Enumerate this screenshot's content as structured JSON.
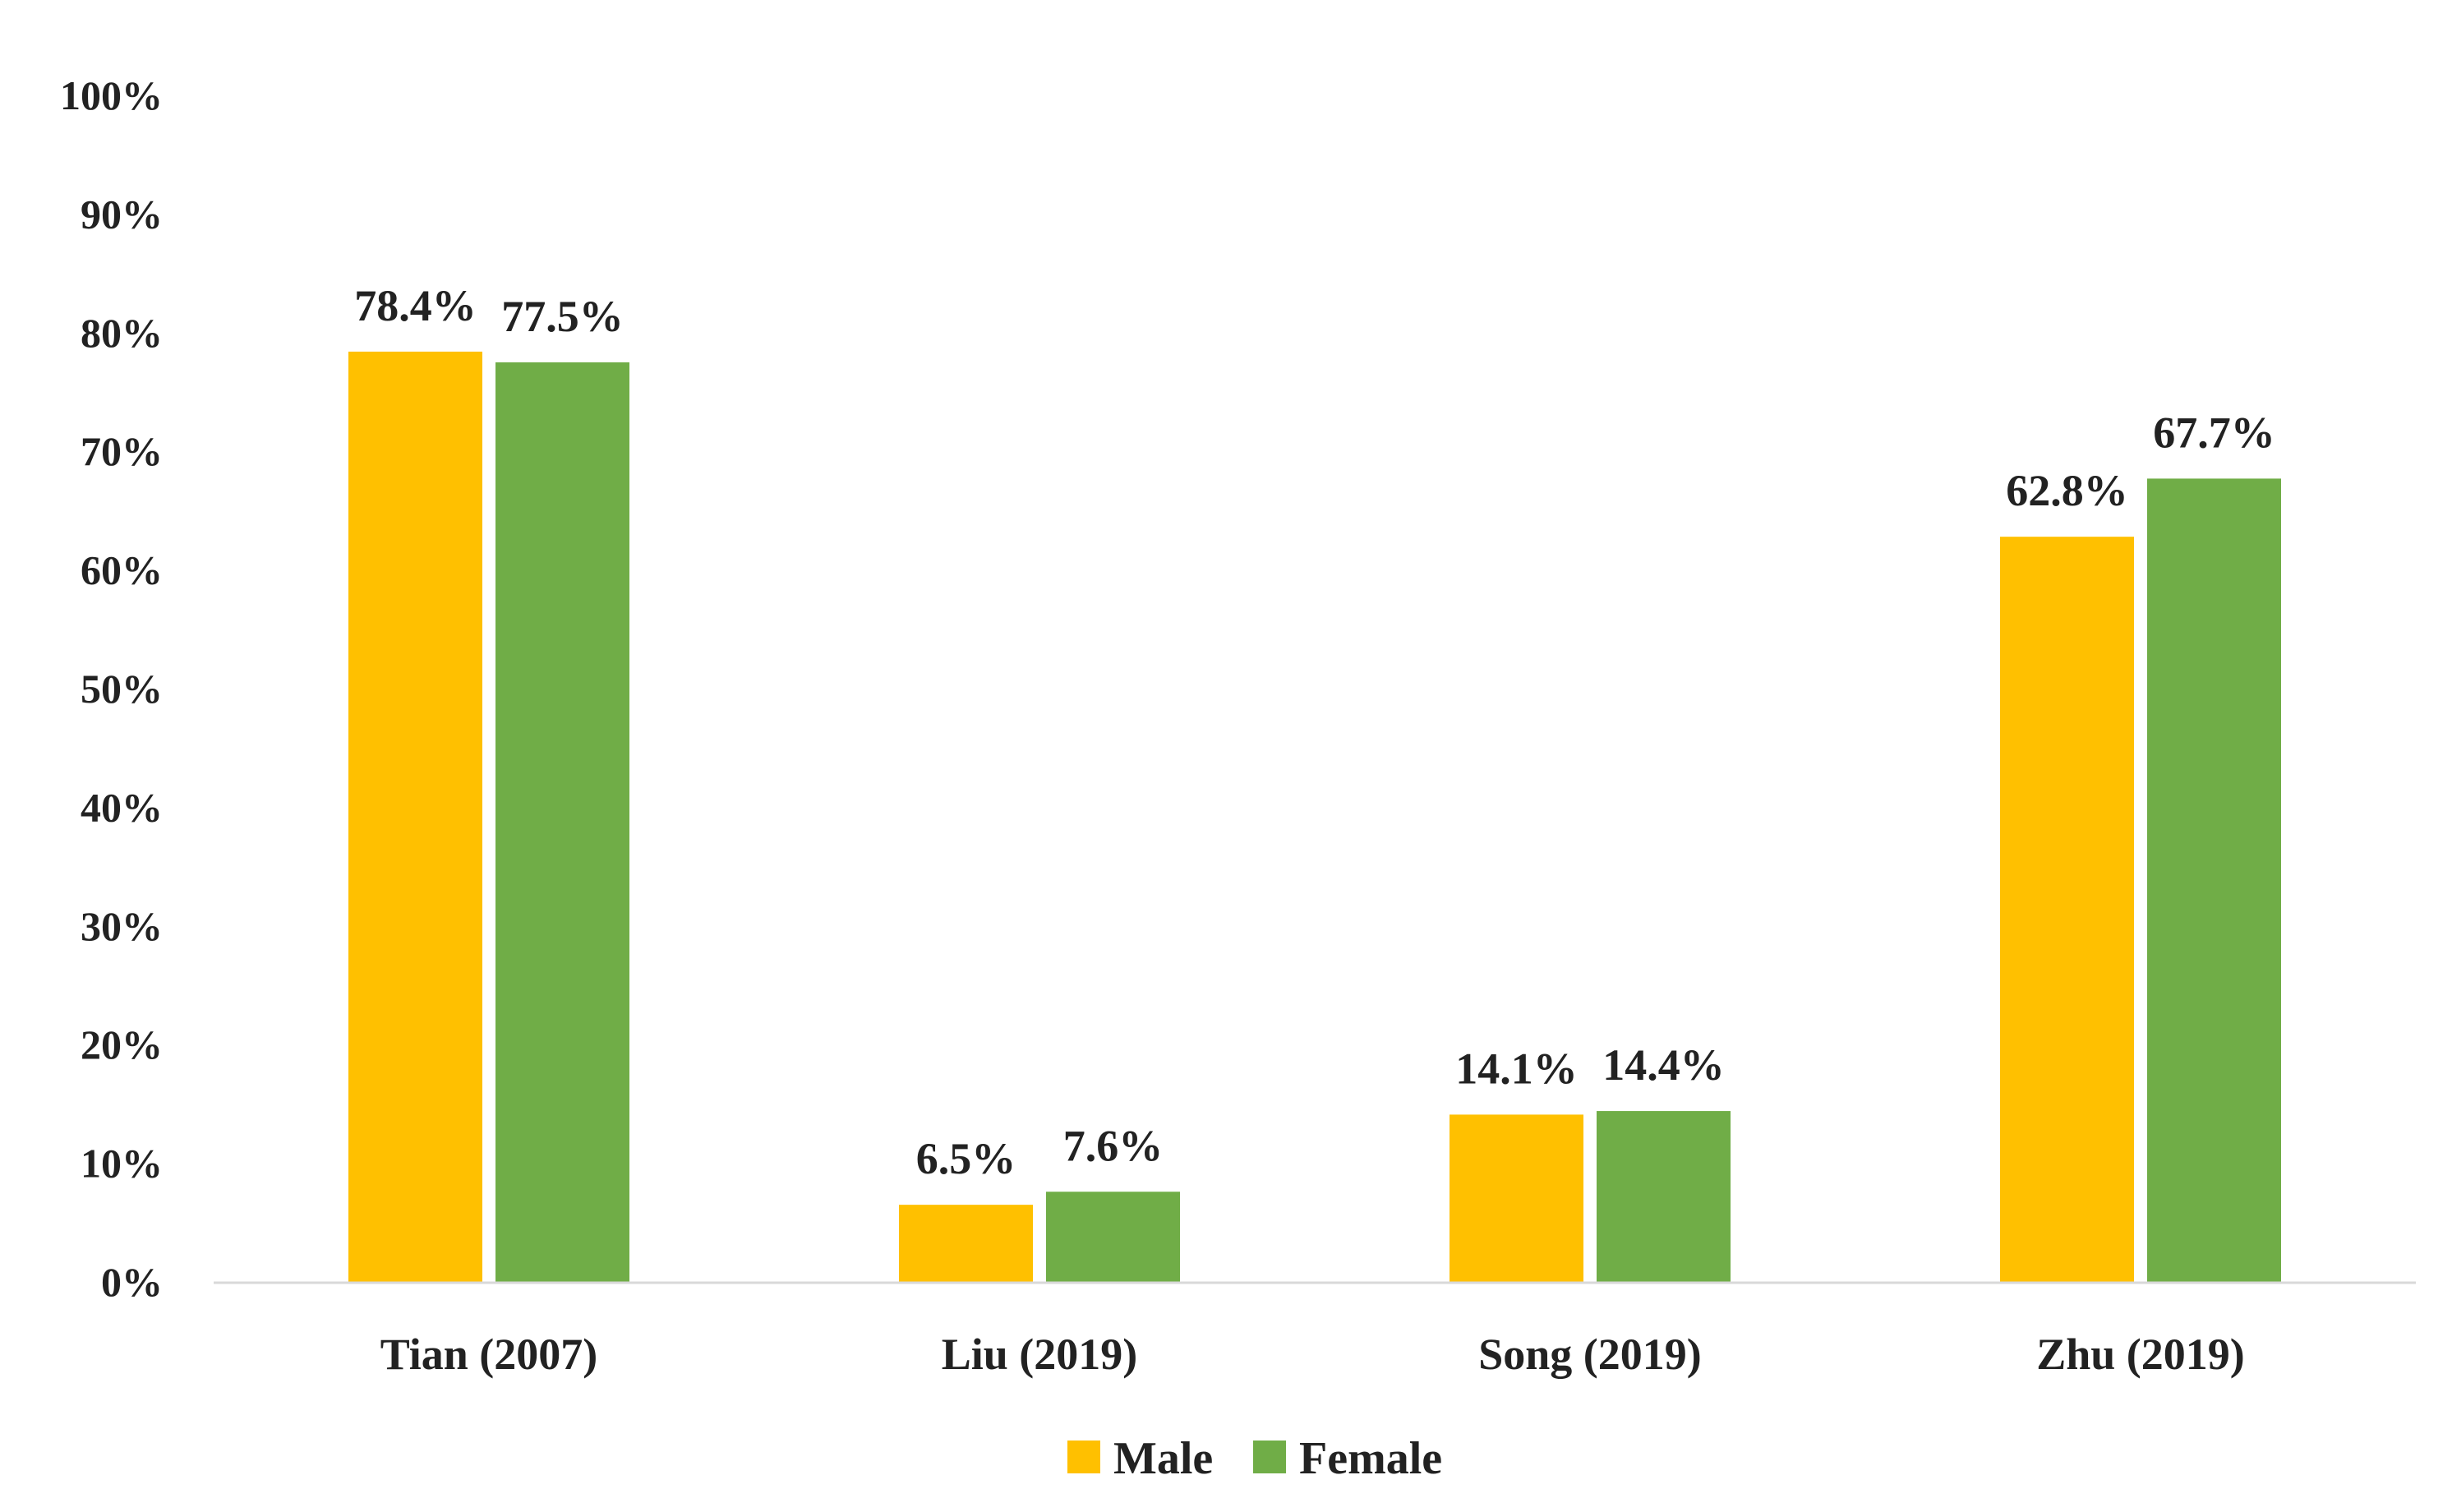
{
  "chart_data": {
    "type": "bar",
    "categories": [
      "Tian (2007)",
      "Liu (2019)",
      "Song (2019)",
      "Zhu (2019)"
    ],
    "series": [
      {
        "name": "Male",
        "color": "#FFC000",
        "values": [
          78.4,
          6.5,
          14.1,
          62.8
        ],
        "labels": [
          "78.4%",
          "6.5%",
          "14.1%",
          "62.8%"
        ]
      },
      {
        "name": "Female",
        "color": "#70AD47",
        "values": [
          77.5,
          7.6,
          14.4,
          67.7
        ],
        "labels": [
          "77.5%",
          "7.6%",
          "14.4%",
          "67.7%"
        ]
      }
    ],
    "y_ticks": [
      "0%",
      "10%",
      "20%",
      "30%",
      "40%",
      "50%",
      "60%",
      "70%",
      "80%",
      "90%",
      "100%"
    ],
    "ylim": [
      0,
      100
    ],
    "grid": false,
    "legend_position": "bottom-center",
    "axis_color": "#D9D9D9"
  }
}
